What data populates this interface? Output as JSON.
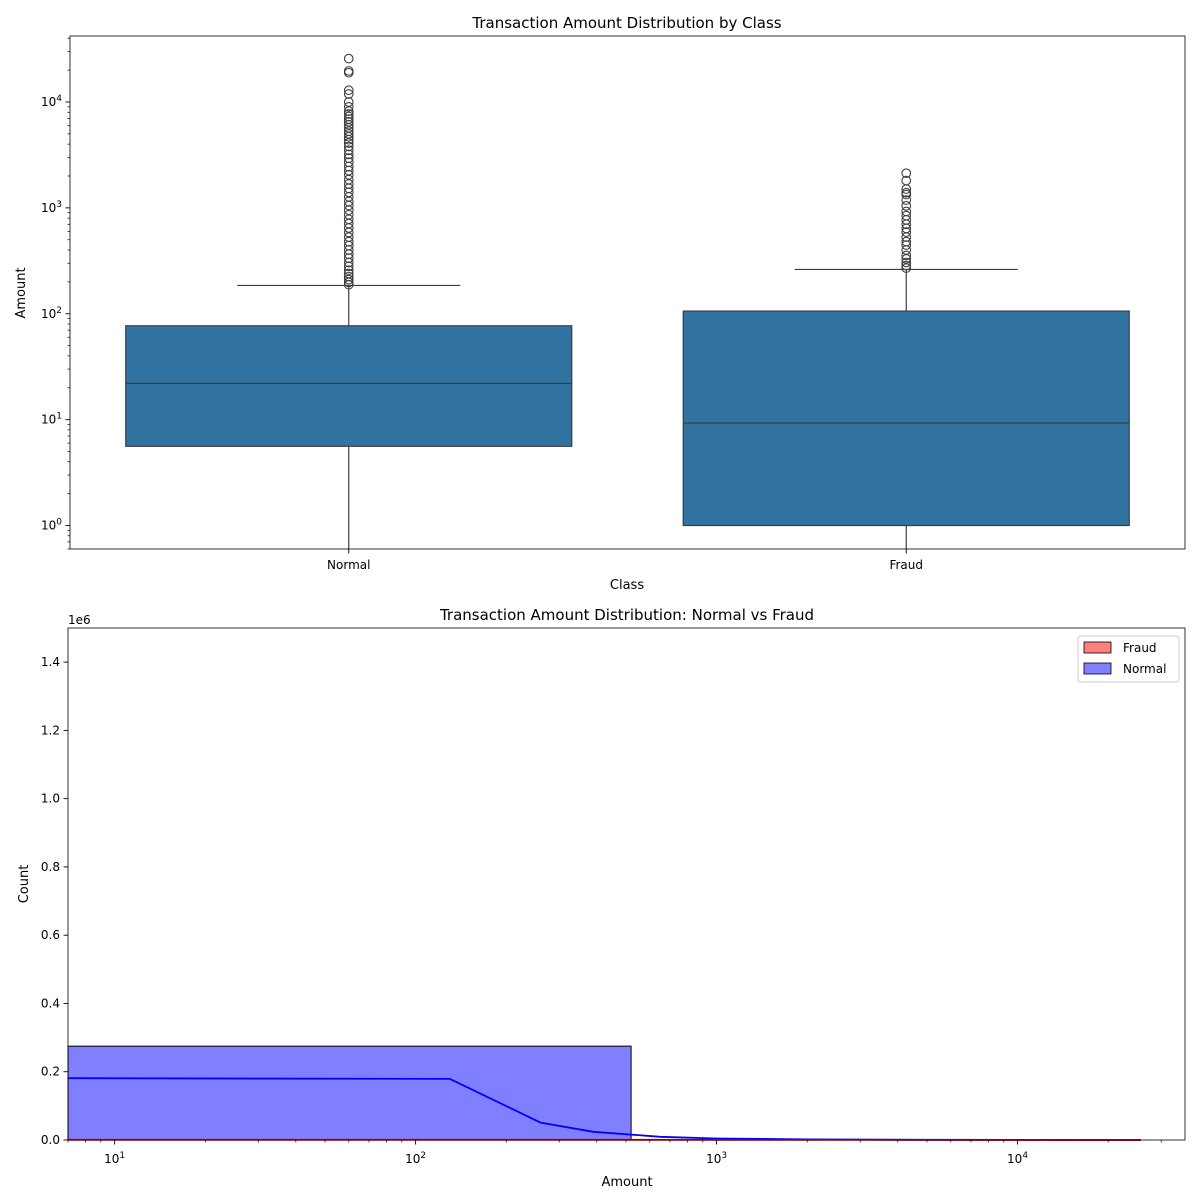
{
  "chart_data": [
    {
      "type": "box",
      "title": "Transaction Amount Distribution by Class",
      "xlabel": "Class",
      "ylabel": "Amount",
      "yscale": "log",
      "ylim": [
        0.6,
        42000
      ],
      "y_ticks": [
        {
          "value": 1,
          "base": "10",
          "exp": "0"
        },
        {
          "value": 10,
          "base": "10",
          "exp": "1"
        },
        {
          "value": 100,
          "base": "10",
          "exp": "2"
        },
        {
          "value": 1000,
          "base": "10",
          "exp": "3"
        },
        {
          "value": 10000,
          "base": "10",
          "exp": "4"
        }
      ],
      "box_color": "#3274a1",
      "categories": [
        "Normal",
        "Fraud"
      ],
      "boxes": [
        {
          "name": "Normal",
          "whisker_low": 0.6,
          "q1": 5.6,
          "median": 22,
          "q3": 77,
          "whisker_high": 185,
          "outliers": [
            25691,
            19656,
            18910,
            12910,
            11898,
            10000,
            9000,
            8200,
            7700,
            7300,
            6900,
            6500,
            6100,
            5700,
            5300,
            5000,
            4700,
            4400,
            4100,
            3800,
            3500,
            3200,
            2950,
            2700,
            2450,
            2250,
            2050,
            1850,
            1680,
            1530,
            1400,
            1270,
            1150,
            1050,
            950,
            860,
            780,
            710,
            645,
            585,
            530,
            480,
            440,
            400,
            365,
            335,
            305,
            280,
            258,
            240,
            224,
            210,
            198,
            188
          ]
        },
        {
          "name": "Fraud",
          "whisker_low": 0.6,
          "q1": 1.0,
          "median": 9.3,
          "q3": 106,
          "whisker_high": 262,
          "outliers": [
            2125,
            1810,
            1505,
            1390,
            1335,
            1185,
            1045,
            925,
            845,
            770,
            700,
            640,
            590,
            530,
            480,
            445,
            400,
            355,
            330,
            305,
            285,
            270
          ]
        }
      ]
    },
    {
      "type": "histogram",
      "title": "Transaction Amount Distribution: Normal vs Fraud",
      "xlabel": "Amount",
      "ylabel": "Count",
      "xscale": "log",
      "xlim": [
        7,
        36000
      ],
      "ylim": [
        0,
        1500000
      ],
      "y_offset_label": "1e6",
      "y_ticks": [
        {
          "value": 0,
          "label": "0.0"
        },
        {
          "value": 200000,
          "label": "0.2"
        },
        {
          "value": 400000,
          "label": "0.4"
        },
        {
          "value": 600000,
          "label": "0.6"
        },
        {
          "value": 800000,
          "label": "0.8"
        },
        {
          "value": 1000000,
          "label": "1.0"
        },
        {
          "value": 1200000,
          "label": "1.2"
        },
        {
          "value": 1400000,
          "label": "1.4"
        }
      ],
      "x_ticks": [
        {
          "value": 10,
          "base": "10",
          "exp": "1"
        },
        {
          "value": 100,
          "base": "10",
          "exp": "2"
        },
        {
          "value": 1000,
          "base": "10",
          "exp": "3"
        },
        {
          "value": 10000,
          "base": "10",
          "exp": "4"
        }
      ],
      "legend": {
        "position": "upper right",
        "entries": [
          "Fraud",
          "Normal"
        ]
      },
      "series": [
        {
          "name": "Fraud",
          "color": "#ff0000",
          "bins": [
            {
              "x0": 7,
              "x1": 520,
              "count": 490
            }
          ],
          "kde": [
            [
              7,
              500
            ],
            [
              520,
              500
            ],
            [
              25700,
              0
            ]
          ]
        },
        {
          "name": "Normal",
          "color": "#0000ff",
          "bins": [
            {
              "x0": 7,
              "x1": 520,
              "count": 275000
            }
          ],
          "kde": [
            [
              7,
              181000
            ],
            [
              130,
              179000
            ],
            [
              260,
              51000
            ],
            [
              390,
              24000
            ],
            [
              650,
              9500
            ],
            [
              1000,
              4500
            ],
            [
              2000,
              1800
            ],
            [
              5000,
              600
            ],
            [
              25700,
              0
            ]
          ]
        }
      ]
    }
  ]
}
